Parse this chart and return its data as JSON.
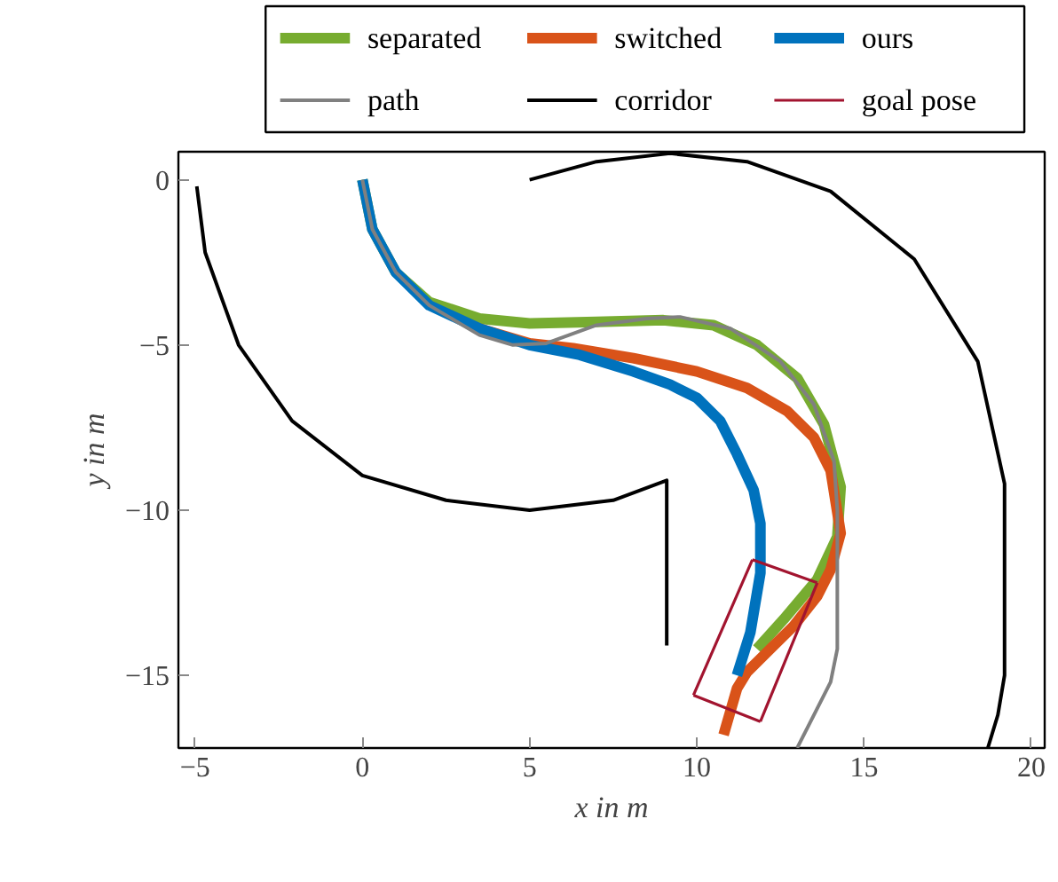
{
  "chart_data": {
    "type": "line",
    "xlabel": "x in m",
    "ylabel": "y in m",
    "xlim": [
      -5.5,
      20.4
    ],
    "ylim": [
      -17.2,
      0.85
    ],
    "xticks": [
      {
        "value": -5,
        "label": "−5"
      },
      0,
      5,
      10,
      15,
      20
    ],
    "yticks": [
      0,
      {
        "value": -5,
        "label": "−5"
      },
      {
        "value": -10,
        "label": "−10"
      },
      {
        "value": -15,
        "label": "−15"
      }
    ],
    "legend": "top",
    "grid": false,
    "series": [
      {
        "name": "separated",
        "color": "#77ac30",
        "x": [
          0,
          0.3,
          1,
          2,
          3.5,
          5,
          7,
          9,
          10.5,
          11.8,
          13,
          13.8,
          14.3,
          14.2,
          13.6,
          12.6,
          11.8
        ],
        "values": [
          0,
          -1.5,
          -2.8,
          -3.7,
          -4.2,
          -4.35,
          -4.3,
          -4.25,
          -4.4,
          -5,
          -6,
          -7.4,
          -9.3,
          -10.8,
          -12.1,
          -13.3,
          -14.2
        ]
      },
      {
        "name": "switched",
        "color": "#d95319",
        "x": [
          3.5,
          5,
          6.3,
          8.1,
          10,
          11.5,
          12.7,
          13.5,
          14,
          14.3,
          14,
          13.6,
          12.9,
          12.2,
          11.5,
          11.2,
          10.8
        ],
        "values": [
          -4.5,
          -4.95,
          -5.1,
          -5.4,
          -5.8,
          -6.3,
          -7,
          -7.8,
          -8.8,
          -10.7,
          -11.8,
          -12.6,
          -13.5,
          -14.2,
          -14.9,
          -15.4,
          -16.8
        ]
      },
      {
        "name": "ours",
        "color": "#0072bd",
        "x": [
          0,
          0.3,
          1,
          2,
          3.5,
          5,
          6.5,
          8.1,
          9.2,
          10,
          10.7,
          11.2,
          11.7,
          11.9,
          11.9,
          11.6,
          11.2
        ],
        "values": [
          0,
          -1.5,
          -2.8,
          -3.8,
          -4.5,
          -5,
          -5.3,
          -5.8,
          -6.2,
          -6.6,
          -7.3,
          -8.3,
          -9.4,
          -10.4,
          -11.9,
          -13.7,
          -15
        ]
      },
      {
        "name": "path",
        "color": "#808080",
        "x": [
          0,
          0.3,
          1,
          2,
          3.5,
          4.5,
          5.5,
          7,
          8.5,
          9.5,
          11,
          12.5,
          13.5,
          14.1,
          14.2,
          14.2,
          14,
          13.6,
          13
        ],
        "values": [
          0,
          -1.5,
          -2.8,
          -3.8,
          -4.7,
          -5,
          -4.95,
          -4.4,
          -4.2,
          -4.15,
          -4.5,
          -5.5,
          -6.8,
          -8.5,
          -10,
          -14.2,
          -15.2,
          -16,
          -17.2
        ]
      },
      {
        "name": "corridor",
        "color": "#000000",
        "x": [
          -4.95,
          -4.7,
          -3.7,
          -2.1,
          0,
          2.5,
          5,
          7.5,
          9.1,
          9.1,
          null,
          5,
          7,
          9.2,
          11.5,
          14,
          16.5,
          18.4,
          19.2,
          19.2,
          19,
          18.7
        ],
        "values": [
          -0.2,
          -2.2,
          -5,
          -7.3,
          -8.95,
          -9.7,
          -10,
          -9.7,
          -9.1,
          -14.1,
          null,
          0,
          0.55,
          0.8,
          0.55,
          -0.35,
          -2.4,
          -5.5,
          -9.2,
          -15,
          -16.2,
          -17.2
        ]
      },
      {
        "name": "goal pose",
        "color": "#a2142f",
        "x": [
          11.66,
          13.6,
          null,
          13.6,
          11.9,
          null,
          11.9,
          9.9,
          null,
          9.9,
          11.66
        ],
        "values": [
          -11.5,
          -12.2,
          null,
          -12.2,
          -16.4,
          null,
          -16.4,
          -15.6,
          null,
          -15.6,
          -11.5
        ]
      }
    ]
  }
}
